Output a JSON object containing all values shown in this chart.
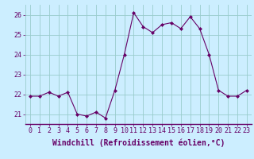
{
  "x": [
    0,
    1,
    2,
    3,
    4,
    5,
    6,
    7,
    8,
    9,
    10,
    11,
    12,
    13,
    14,
    15,
    16,
    17,
    18,
    19,
    20,
    21,
    22,
    23
  ],
  "y": [
    21.9,
    21.9,
    22.1,
    21.9,
    22.1,
    21.0,
    20.9,
    21.1,
    20.8,
    22.2,
    24.0,
    26.1,
    25.4,
    25.1,
    25.5,
    25.6,
    25.3,
    25.9,
    25.3,
    24.0,
    22.2,
    21.9,
    21.9,
    22.2
  ],
  "line_color": "#660066",
  "marker": "D",
  "marker_size": 2.0,
  "bg_color": "#cceeff",
  "grid_color": "#99cccc",
  "xlabel": "Windchill (Refroidissement éolien,°C)",
  "xlabel_fontsize": 7,
  "tick_fontsize": 6,
  "ylim": [
    20.5,
    26.5
  ],
  "yticks": [
    21,
    22,
    23,
    24,
    25,
    26
  ],
  "xlim": [
    -0.5,
    23.5
  ],
  "xticks": [
    0,
    1,
    2,
    3,
    4,
    5,
    6,
    7,
    8,
    9,
    10,
    11,
    12,
    13,
    14,
    15,
    16,
    17,
    18,
    19,
    20,
    21,
    22,
    23
  ]
}
